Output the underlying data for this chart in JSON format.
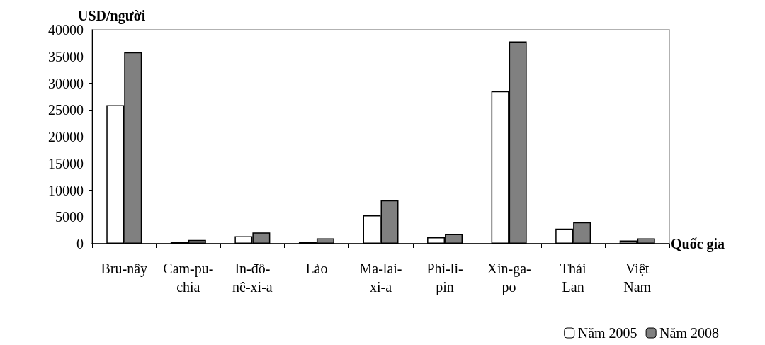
{
  "chart_data": {
    "type": "bar",
    "ylabel": "USD/người",
    "xlabel": "Quốc gia",
    "categories": [
      "Bru-nây",
      "Cam-pu-chia",
      "In-đô-nê-xi-a",
      "Lào",
      "Ma-lai-xi-a",
      "Phi-li-pin",
      "Xin-ga-po",
      "Thái Lan",
      "Việt Nam"
    ],
    "series": [
      {
        "name": "Năm 2005",
        "color": "#ffffff",
        "values": [
          25900,
          300,
          1400,
          300,
          5300,
          1200,
          28500,
          2800,
          600
        ]
      },
      {
        "name": "Năm 2008",
        "color": "#808080",
        "values": [
          35800,
          700,
          2100,
          1000,
          8100,
          1800,
          37800,
          4000,
          1000
        ]
      }
    ],
    "ylim": [
      0,
      40000
    ],
    "yticks": [
      0,
      5000,
      10000,
      15000,
      20000,
      25000,
      30000,
      35000,
      40000
    ],
    "grid": false,
    "legend": "bottom right"
  }
}
